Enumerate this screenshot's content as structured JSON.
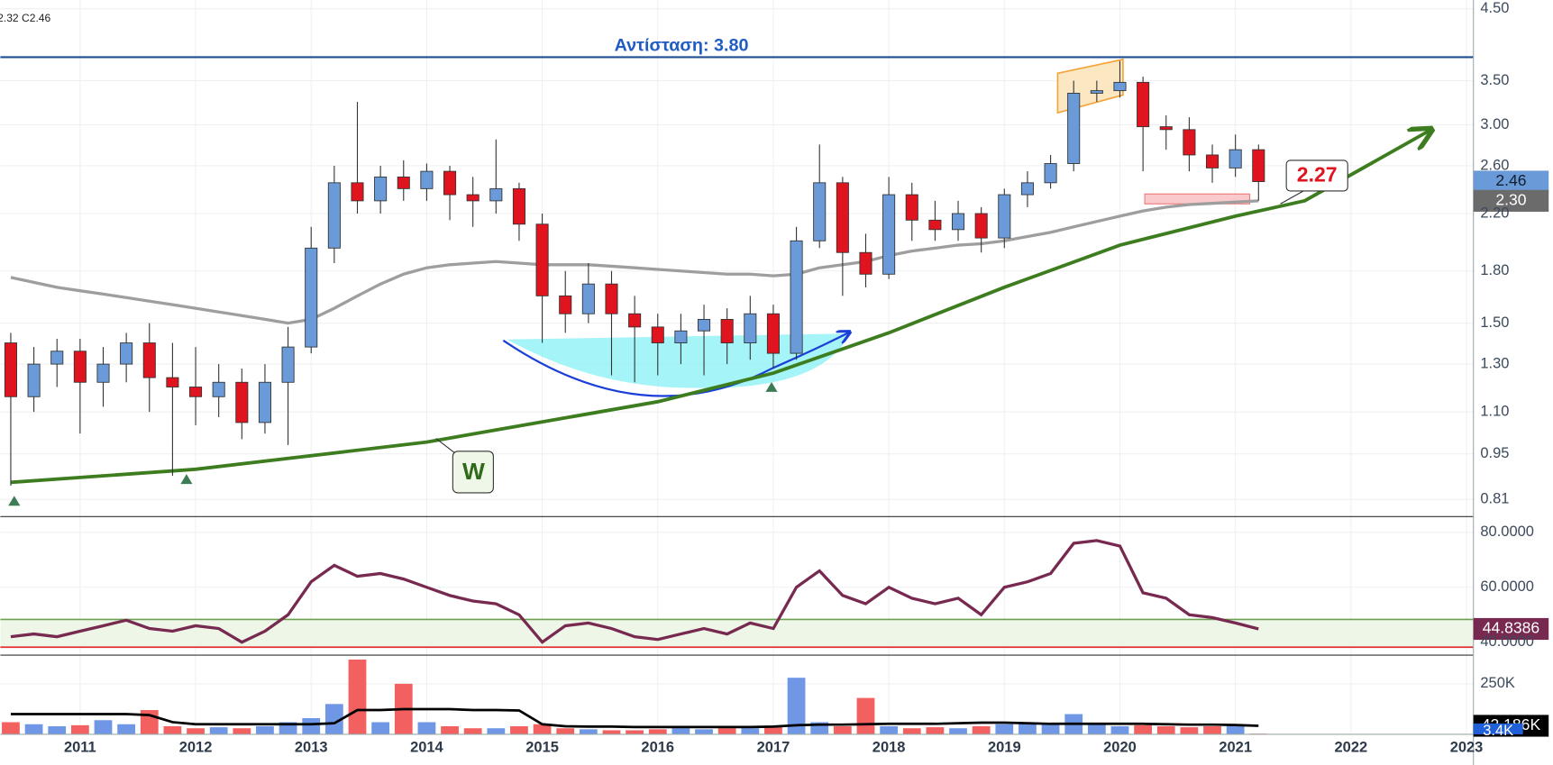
{
  "chart_data": {
    "type": "candlestick",
    "legend_text": "2.32  C2.46",
    "xlim": [
      2010.31,
      2023.06
    ],
    "xticks": [
      2011,
      2012,
      2013,
      2014,
      2015,
      2016,
      2017,
      2018,
      2019,
      2020,
      2021,
      2022,
      2023
    ],
    "x": [
      2010.4,
      2010.6,
      2010.8,
      2011.0,
      2011.2,
      2011.4,
      2011.6,
      2011.8,
      2012.0,
      2012.2,
      2012.4,
      2012.6,
      2012.8,
      2013.0,
      2013.2,
      2013.4,
      2013.6,
      2013.8,
      2014.0,
      2014.2,
      2014.4,
      2014.6,
      2014.8,
      2015.0,
      2015.2,
      2015.4,
      2015.6,
      2015.8,
      2016.0,
      2016.2,
      2016.4,
      2016.6,
      2016.8,
      2017.0,
      2017.2,
      2017.4,
      2017.6,
      2017.8,
      2018.0,
      2018.2,
      2018.4,
      2018.6,
      2018.8,
      2019.0,
      2019.2,
      2019.4,
      2019.6,
      2019.8,
      2020.0,
      2020.2,
      2020.4,
      2020.6,
      2020.8,
      2021.0,
      2021.2
    ],
    "log_scale": true,
    "ylim": [
      0.763,
      4.64
    ],
    "yticks": [
      {
        "value": 4.5,
        "label": "4.50"
      },
      {
        "value": 3.5,
        "label": "3.50"
      },
      {
        "value": 3,
        "label": "3.00"
      },
      {
        "value": 2.6,
        "label": "2.60"
      },
      {
        "value": 2.2,
        "label": "2.20"
      },
      {
        "value": 1.8,
        "label": "1.80"
      },
      {
        "value": 1.5,
        "label": "1.50"
      },
      {
        "value": 1.3,
        "label": "1.30"
      },
      {
        "value": 1.1,
        "label": "1.10"
      },
      0.95,
      0.81
    ],
    "grid": true,
    "up_color": "#6a9ad8",
    "down_color": "#e0141e",
    "candles": [
      [
        1.4,
        1.45,
        0.85,
        1.16
      ],
      [
        1.16,
        1.38,
        1.1,
        1.3
      ],
      [
        1.3,
        1.42,
        1.2,
        1.36
      ],
      [
        1.36,
        1.42,
        1.02,
        1.22
      ],
      [
        1.22,
        1.38,
        1.12,
        1.3
      ],
      [
        1.3,
        1.45,
        1.22,
        1.4
      ],
      [
        1.4,
        1.5,
        1.1,
        1.24
      ],
      [
        1.24,
        1.4,
        0.88,
        1.2
      ],
      [
        1.2,
        1.38,
        1.05,
        1.16
      ],
      [
        1.16,
        1.3,
        1.08,
        1.22
      ],
      [
        1.22,
        1.28,
        1.0,
        1.06
      ],
      [
        1.06,
        1.3,
        1.02,
        1.22
      ],
      [
        1.22,
        1.48,
        0.98,
        1.38
      ],
      [
        1.38,
        2.1,
        1.35,
        1.95
      ],
      [
        1.95,
        2.6,
        1.85,
        2.45
      ],
      [
        2.45,
        3.25,
        2.2,
        2.3
      ],
      [
        2.3,
        2.6,
        2.2,
        2.5
      ],
      [
        2.5,
        2.65,
        2.3,
        2.4
      ],
      [
        2.4,
        2.62,
        2.3,
        2.55
      ],
      [
        2.55,
        2.6,
        2.15,
        2.35
      ],
      [
        2.35,
        2.5,
        2.1,
        2.3
      ],
      [
        2.3,
        2.85,
        2.2,
        2.4
      ],
      [
        2.4,
        2.45,
        2.0,
        2.12
      ],
      [
        2.12,
        2.2,
        1.4,
        1.65
      ],
      [
        1.65,
        1.8,
        1.45,
        1.55
      ],
      [
        1.55,
        1.85,
        1.5,
        1.72
      ],
      [
        1.72,
        1.8,
        1.25,
        1.55
      ],
      [
        1.55,
        1.65,
        1.22,
        1.48
      ],
      [
        1.48,
        1.55,
        1.25,
        1.4
      ],
      [
        1.4,
        1.55,
        1.3,
        1.46
      ],
      [
        1.46,
        1.6,
        1.25,
        1.52
      ],
      [
        1.52,
        1.58,
        1.3,
        1.4
      ],
      [
        1.4,
        1.65,
        1.32,
        1.55
      ],
      [
        1.55,
        1.6,
        1.28,
        1.35
      ],
      [
        1.35,
        2.1,
        1.32,
        2.0
      ],
      [
        2.0,
        2.8,
        1.95,
        2.45
      ],
      [
        2.45,
        2.5,
        1.65,
        1.92
      ],
      [
        1.92,
        2.05,
        1.7,
        1.78
      ],
      [
        1.78,
        2.5,
        1.75,
        2.35
      ],
      [
        2.35,
        2.45,
        2.0,
        2.15
      ],
      [
        2.15,
        2.3,
        2.0,
        2.08
      ],
      [
        2.08,
        2.3,
        2.0,
        2.2
      ],
      [
        2.2,
        2.25,
        1.92,
        2.02
      ],
      [
        2.02,
        2.4,
        1.95,
        2.35
      ],
      [
        2.35,
        2.55,
        2.25,
        2.45
      ],
      [
        2.45,
        2.7,
        2.4,
        2.62
      ],
      [
        2.62,
        3.5,
        2.55,
        3.35
      ],
      [
        3.35,
        3.5,
        3.25,
        3.38
      ],
      [
        3.38,
        3.75,
        3.3,
        3.48
      ],
      [
        3.48,
        3.55,
        2.55,
        2.98
      ],
      [
        2.98,
        3.1,
        2.75,
        2.95
      ],
      [
        2.95,
        3.08,
        2.55,
        2.7
      ],
      [
        2.7,
        2.8,
        2.45,
        2.58
      ],
      [
        2.58,
        2.9,
        2.5,
        2.75
      ],
      [
        2.75,
        2.8,
        2.3,
        2.46
      ]
    ],
    "ma": {
      "color": "#9e9e9e",
      "values": [
        1.76,
        1.73,
        1.7,
        1.68,
        1.66,
        1.64,
        1.62,
        1.6,
        1.58,
        1.56,
        1.54,
        1.52,
        1.5,
        1.52,
        1.58,
        1.65,
        1.72,
        1.78,
        1.82,
        1.84,
        1.85,
        1.86,
        1.85,
        1.84,
        1.84,
        1.84,
        1.83,
        1.82,
        1.81,
        1.8,
        1.79,
        1.78,
        1.78,
        1.77,
        1.78,
        1.82,
        1.84,
        1.86,
        1.9,
        1.93,
        1.95,
        1.97,
        1.98,
        2.0,
        2.03,
        2.06,
        2.1,
        2.14,
        2.18,
        2.22,
        2.25,
        2.27,
        2.28,
        2.29,
        2.3
      ],
      "value_labels": [
        null,
        null,
        null,
        null,
        null,
        null,
        null,
        null,
        null,
        null,
        null,
        null,
        null,
        null,
        null,
        null,
        null,
        null,
        null,
        null,
        null,
        null,
        null,
        null,
        null,
        null,
        null,
        null,
        null,
        null,
        null,
        null,
        null,
        null,
        null,
        null,
        null,
        null,
        null,
        null,
        null,
        null,
        null,
        null,
        null,
        null,
        null,
        null,
        null,
        null,
        null,
        null,
        null,
        null,
        "2.30"
      ]
    },
    "resistance": {
      "value": 3.8,
      "label": "Αντίσταση: 3.80",
      "color": "#1f4e96"
    },
    "trendline": {
      "color": "#3d7d1f",
      "x": [
        2010.4,
        2012,
        2014,
        2016,
        2017,
        2018,
        2019,
        2020,
        2021,
        2021.6,
        2022.68
      ],
      "values": [
        0.86,
        0.9,
        0.99,
        1.14,
        1.26,
        1.45,
        1.7,
        1.97,
        2.18,
        2.3,
        2.94
      ]
    },
    "annotations": {
      "target": "2.27",
      "pattern": "W"
    },
    "rsi": {
      "color": "#77294f",
      "ylim": [
        35.3,
        85
      ],
      "upper_band": 48.3,
      "lower_band": 38.2,
      "yticks": [
        {
          "value": 80,
          "label": "80.0000"
        },
        {
          "value": 60,
          "label": "60.0000"
        },
        {
          "value": 40,
          "label": "40.0000"
        }
      ],
      "values": [
        42,
        43,
        42,
        44,
        46,
        48,
        45,
        44,
        46,
        45,
        40,
        44,
        50,
        62,
        68,
        64,
        65,
        63,
        60,
        57,
        55,
        54,
        50,
        40,
        46,
        47,
        45,
        42,
        41,
        43,
        45,
        43,
        47,
        45,
        60,
        66,
        57,
        54,
        60,
        56,
        54,
        56,
        50,
        60,
        62,
        65,
        76,
        77,
        75,
        58,
        56,
        50,
        49,
        47,
        44.8386
      ]
    },
    "volume": {
      "ylim": [
        0,
        382000
      ],
      "yticks": [
        {
          "value": 250000,
          "label": "250K"
        }
      ],
      "up_color": "#6f97e6",
      "down_color": "#f26060",
      "values": [
        60000,
        50000,
        40000,
        45000,
        70000,
        50000,
        120000,
        40000,
        30000,
        35000,
        30000,
        40000,
        60000,
        80000,
        150000,
        370000,
        60000,
        250000,
        60000,
        40000,
        30000,
        30000,
        40000,
        50000,
        30000,
        25000,
        20000,
        20000,
        25000,
        30000,
        25000,
        30000,
        30000,
        40000,
        280000,
        60000,
        40000,
        180000,
        40000,
        30000,
        35000,
        30000,
        40000,
        50000,
        60000,
        50000,
        100000,
        50000,
        40000,
        45000,
        40000,
        35000,
        40000,
        50000,
        3400
      ],
      "value_labels": [
        null,
        null,
        null,
        null,
        null,
        null,
        null,
        null,
        null,
        null,
        null,
        null,
        null,
        null,
        null,
        null,
        null,
        null,
        null,
        null,
        null,
        null,
        null,
        null,
        null,
        null,
        null,
        null,
        null,
        null,
        null,
        null,
        null,
        null,
        null,
        null,
        null,
        null,
        null,
        null,
        null,
        null,
        null,
        null,
        null,
        null,
        null,
        null,
        null,
        null,
        null,
        null,
        null,
        null,
        "3.4K"
      ],
      "ma": {
        "color": "#000000",
        "values": [
          100000,
          100000,
          100000,
          100000,
          100000,
          100000,
          95000,
          60000,
          50000,
          50000,
          50000,
          50000,
          50000,
          50000,
          55000,
          120000,
          120000,
          125000,
          125000,
          125000,
          120000,
          120000,
          118000,
          50000,
          40000,
          38000,
          38000,
          36000,
          36000,
          36000,
          36000,
          36000,
          36000,
          38000,
          45000,
          48000,
          48000,
          50000,
          52000,
          52000,
          52000,
          55000,
          58000,
          58000,
          55000,
          52000,
          52000,
          52000,
          52000,
          52000,
          50000,
          48000,
          48000,
          46000,
          42186
        ],
        "value_labels": [
          null,
          null,
          null,
          null,
          null,
          null,
          null,
          null,
          null,
          null,
          null,
          null,
          null,
          null,
          null,
          null,
          null,
          null,
          null,
          null,
          null,
          null,
          null,
          null,
          null,
          null,
          null,
          null,
          null,
          null,
          null,
          null,
          null,
          null,
          null,
          null,
          null,
          null,
          null,
          null,
          null,
          null,
          null,
          null,
          null,
          null,
          null,
          null,
          null,
          null,
          null,
          null,
          null,
          null,
          "42.186K"
        ]
      }
    }
  }
}
